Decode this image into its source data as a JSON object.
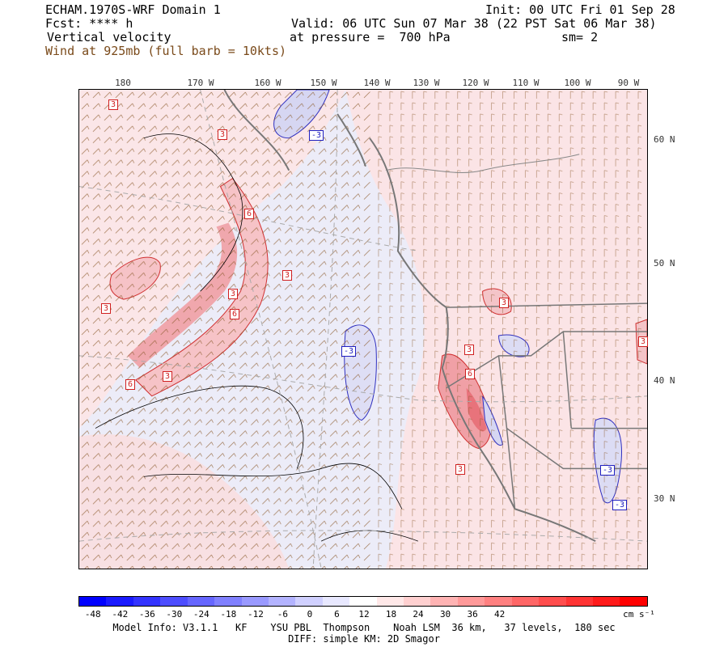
{
  "header": {
    "model_domain": "ECHAM.1970S-WRF Domain 1",
    "init": "Init: 00 UTC Fri 01 Sep 28",
    "fcst": "Fcst: **** h",
    "valid": "Valid: 06 UTC Sun 07 Mar 38 (22 PST Sat 06 Mar 38)",
    "field": "Vertical velocity",
    "pressure": "at pressure =  700 hPa",
    "smoothing": "sm= 2",
    "wind_desc": "Wind at 925mb (full barb = 10kts)"
  },
  "axes": {
    "longitudes": [
      "180",
      "170 W",
      "160 W",
      "150 W",
      "140 W",
      "130 W",
      "120 W",
      "110 W",
      "100 W",
      "90 W"
    ],
    "latitudes": [
      "60 N",
      "50 N",
      "40 N",
      "30 N"
    ]
  },
  "contour_labels": [
    {
      "text": "3",
      "pos": "c1"
    },
    {
      "text": "3",
      "pos": "c2"
    },
    {
      "text": "-3",
      "pos": "c3"
    },
    {
      "text": "6",
      "pos": "c4"
    },
    {
      "text": "3",
      "pos": "c5"
    },
    {
      "text": "3",
      "pos": "c6"
    },
    {
      "text": "3",
      "pos": "c7"
    },
    {
      "text": "6",
      "pos": "c8"
    },
    {
      "text": "3",
      "pos": "c9"
    },
    {
      "text": "6",
      "pos": "c10"
    },
    {
      "text": "3",
      "pos": "c11"
    },
    {
      "text": "-3",
      "pos": "c12"
    },
    {
      "text": "3",
      "pos": "c13"
    },
    {
      "text": "6",
      "pos": "c14"
    },
    {
      "text": "3",
      "pos": "c15"
    },
    {
      "text": "-3",
      "pos": "c16"
    },
    {
      "text": "-3",
      "pos": "c17"
    },
    {
      "text": "3",
      "pos": "c18"
    }
  ],
  "colorbar": {
    "labels": [
      "-48",
      "-42",
      "-36",
      "-30",
      "-24",
      "-18",
      "-12",
      "-6",
      "0",
      "6",
      "12",
      "18",
      "24",
      "30",
      "36",
      "42"
    ],
    "units": "cm s⁻¹",
    "colors": [
      "#0000ff",
      "#1a1aff",
      "#3333ff",
      "#4d4dff",
      "#6666ff",
      "#8080ff",
      "#9999ff",
      "#b3b3ff",
      "#d0d0ff",
      "#e8e8ff",
      "#ffffff",
      "#ffe8e8",
      "#ffd0d0",
      "#ffb3b3",
      "#ff9999",
      "#ff8080",
      "#ff6666",
      "#ff4d4d",
      "#ff3333",
      "#ff1a1a",
      "#ff0000"
    ]
  },
  "footer": {
    "line1": "Model Info: V3.1.1   KF    YSU PBL  Thompson    Noah LSM  36 km,   37 levels,  180 sec",
    "line2": "DIFF: simple KM: 2D Smagor"
  }
}
